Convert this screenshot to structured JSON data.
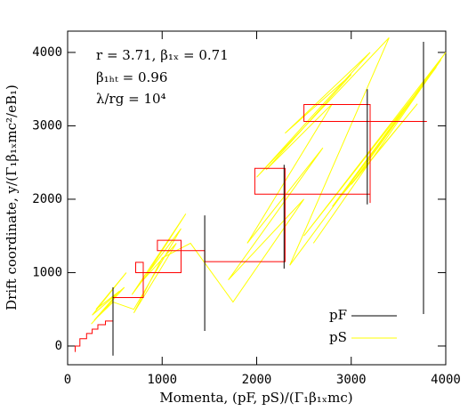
{
  "chart_data": {
    "type": "line",
    "xlabel": "Momenta, (pF, pS)/(Γ₁β₁ₓmc)",
    "ylabel": "Drift coordinate,  y/(Γ₁β₁ₓmc²/eB₁)",
    "annotations": [
      "r = 3.71, β₁ₓ = 0.71",
      "β₁ₕₜ = 0.96",
      "λ/rg = 10⁴"
    ],
    "xlim": [
      0,
      4000
    ],
    "ylim": [
      -255,
      4290
    ],
    "xticks": [
      0,
      1000,
      2000,
      3000,
      4000
    ],
    "yticks": [
      0,
      1000,
      2000,
      3000,
      4000
    ],
    "legend": "lower right",
    "series": [
      {
        "color": "#ffff00",
        "x": [
          250,
          600,
          260,
          620,
          300,
          550,
          280,
          480,
          700,
          1200,
          680,
          1250,
          800,
          1150,
          700,
          1000,
          1300,
          1750,
          2500,
          1700,
          2700,
          1900,
          2800,
          2100,
          3000,
          2300,
          3200,
          2000,
          3400,
          2350,
          3900,
          2500,
          4000,
          2800,
          3700,
          3000,
          3950,
          2600
        ],
        "values": [
          300,
          800,
          420,
          1000,
          500,
          750,
          350,
          600,
          500,
          1600,
          700,
          1800,
          900,
          1400,
          450,
          1200,
          1400,
          600,
          2000,
          900,
          2700,
          1400,
          3300,
          2400,
          3700,
          2900,
          4000,
          2300,
          4200,
          1100,
          3800,
          1500,
          4000,
          1900,
          3300,
          2200,
          3900,
          1400
        ]
      },
      {
        "color": "#ff0000",
        "x": [
          80,
          80,
          130,
          130,
          200,
          200,
          260,
          260,
          320,
          320,
          400,
          400,
          480,
          480,
          800,
          800,
          720,
          720,
          1200,
          1200,
          950,
          950,
          1450,
          1450,
          2300,
          2300,
          1980,
          1980,
          3200,
          3200,
          3200,
          2500,
          2500,
          3800
        ],
        "values": [
          -80,
          0,
          0,
          100,
          100,
          170,
          170,
          230,
          230,
          290,
          290,
          340,
          340,
          660,
          660,
          1140,
          1140,
          1000,
          1000,
          1440,
          1440,
          1300,
          1300,
          1150,
          1150,
          2420,
          2420,
          2070,
          2070,
          1950,
          3290,
          3290,
          3060,
          3060
        ]
      },
      {
        "name": "pF",
        "color": "#000000",
        "x": [
          480,
          480,
          null,
          1450,
          1450,
          null,
          2290,
          2290,
          null,
          3170,
          3170,
          null,
          3765,
          3765
        ],
        "values": [
          -130,
          800,
          null,
          205,
          1780,
          null,
          1055,
          2470,
          null,
          1930,
          3500,
          null,
          436,
          4145
        ]
      },
      {
        "name": "pS",
        "color": "#ffff00",
        "legend_only": true
      }
    ]
  }
}
